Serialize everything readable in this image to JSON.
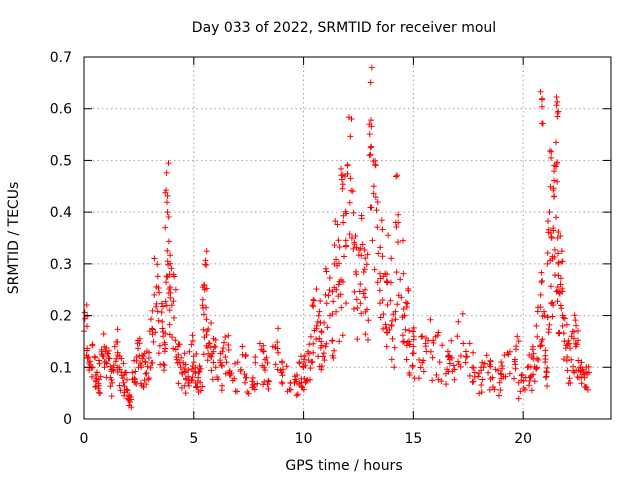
{
  "chart_data": {
    "type": "scatter",
    "title": "Day 033 of 2022, SRMTID for receiver moul",
    "xlabel": "GPS time / hours",
    "ylabel": "SRMTID / TECUs",
    "xlim": [
      0,
      24
    ],
    "ylim": [
      0,
      0.7
    ],
    "xticks": [
      0,
      5,
      10,
      15,
      20
    ],
    "yticks": [
      0,
      0.1,
      0.2,
      0.3,
      0.4,
      0.5,
      0.6,
      0.7
    ],
    "xtick_labels": [
      "0",
      "5",
      "10",
      "15",
      "20"
    ],
    "ytick_labels": [
      "0",
      "0.1",
      "0.2",
      "0.3",
      "0.4",
      "0.5",
      "0.6",
      "0.7"
    ],
    "grid": true,
    "marker": "+",
    "series": [
      {
        "name": "SRMTID",
        "color": "#ff0000",
        "x": [
          0.0,
          0.2,
          0.4,
          0.6,
          0.8,
          1.0,
          1.2,
          1.4,
          1.6,
          1.8,
          2.0,
          2.2,
          2.4,
          2.6,
          2.8,
          3.0,
          3.2,
          3.4,
          3.6,
          3.7,
          3.8,
          3.9,
          4.0,
          4.2,
          4.4,
          4.6,
          4.8,
          5.0,
          5.2,
          5.4,
          5.5,
          5.6,
          5.8,
          6.0,
          6.3,
          6.6,
          7.0,
          7.4,
          7.8,
          8.2,
          8.6,
          9.0,
          9.4,
          9.8,
          10.0,
          10.2,
          10.4,
          10.6,
          10.8,
          11.0,
          11.2,
          11.4,
          11.6,
          11.8,
          12.0,
          12.2,
          12.4,
          12.6,
          12.8,
          13.0,
          13.2,
          13.4,
          13.6,
          13.8,
          14.0,
          14.2,
          14.4,
          14.6,
          14.8,
          15.0,
          15.4,
          15.8,
          16.2,
          16.6,
          17.0,
          17.4,
          17.8,
          18.2,
          18.6,
          19.0,
          19.4,
          19.8,
          20.2,
          20.4,
          20.6,
          20.8,
          21.0,
          21.1,
          21.2,
          21.3,
          21.4,
          21.5,
          21.6,
          21.7,
          21.8,
          22.0,
          22.2,
          22.4,
          22.6,
          22.8
        ],
        "y": [
          0.17,
          0.12,
          0.1,
          0.09,
          0.13,
          0.11,
          0.08,
          0.14,
          0.1,
          0.07,
          0.04,
          0.09,
          0.12,
          0.1,
          0.11,
          0.17,
          0.24,
          0.19,
          0.16,
          0.37,
          0.4,
          0.28,
          0.22,
          0.12,
          0.1,
          0.09,
          0.13,
          0.11,
          0.08,
          0.22,
          0.25,
          0.17,
          0.12,
          0.1,
          0.13,
          0.09,
          0.11,
          0.08,
          0.12,
          0.1,
          0.14,
          0.09,
          0.07,
          0.11,
          0.1,
          0.13,
          0.22,
          0.18,
          0.15,
          0.24,
          0.2,
          0.3,
          0.26,
          0.38,
          0.49,
          0.35,
          0.28,
          0.33,
          0.25,
          0.57,
          0.45,
          0.32,
          0.23,
          0.28,
          0.18,
          0.38,
          0.27,
          0.2,
          0.15,
          0.14,
          0.16,
          0.13,
          0.11,
          0.12,
          0.16,
          0.12,
          0.09,
          0.1,
          0.08,
          0.11,
          0.13,
          0.07,
          0.1,
          0.12,
          0.18,
          0.24,
          0.11,
          0.3,
          0.4,
          0.35,
          0.43,
          0.39,
          0.3,
          0.26,
          0.18,
          0.12,
          0.16,
          0.14,
          0.1,
          0.08
        ],
        "peaks": [
          {
            "x": 20.85,
            "y": 0.64
          },
          {
            "x": 21.55,
            "y": 0.66
          },
          {
            "x": 13.05,
            "y": 0.57
          },
          {
            "x": 11.75,
            "y": 0.51
          }
        ]
      }
    ]
  }
}
